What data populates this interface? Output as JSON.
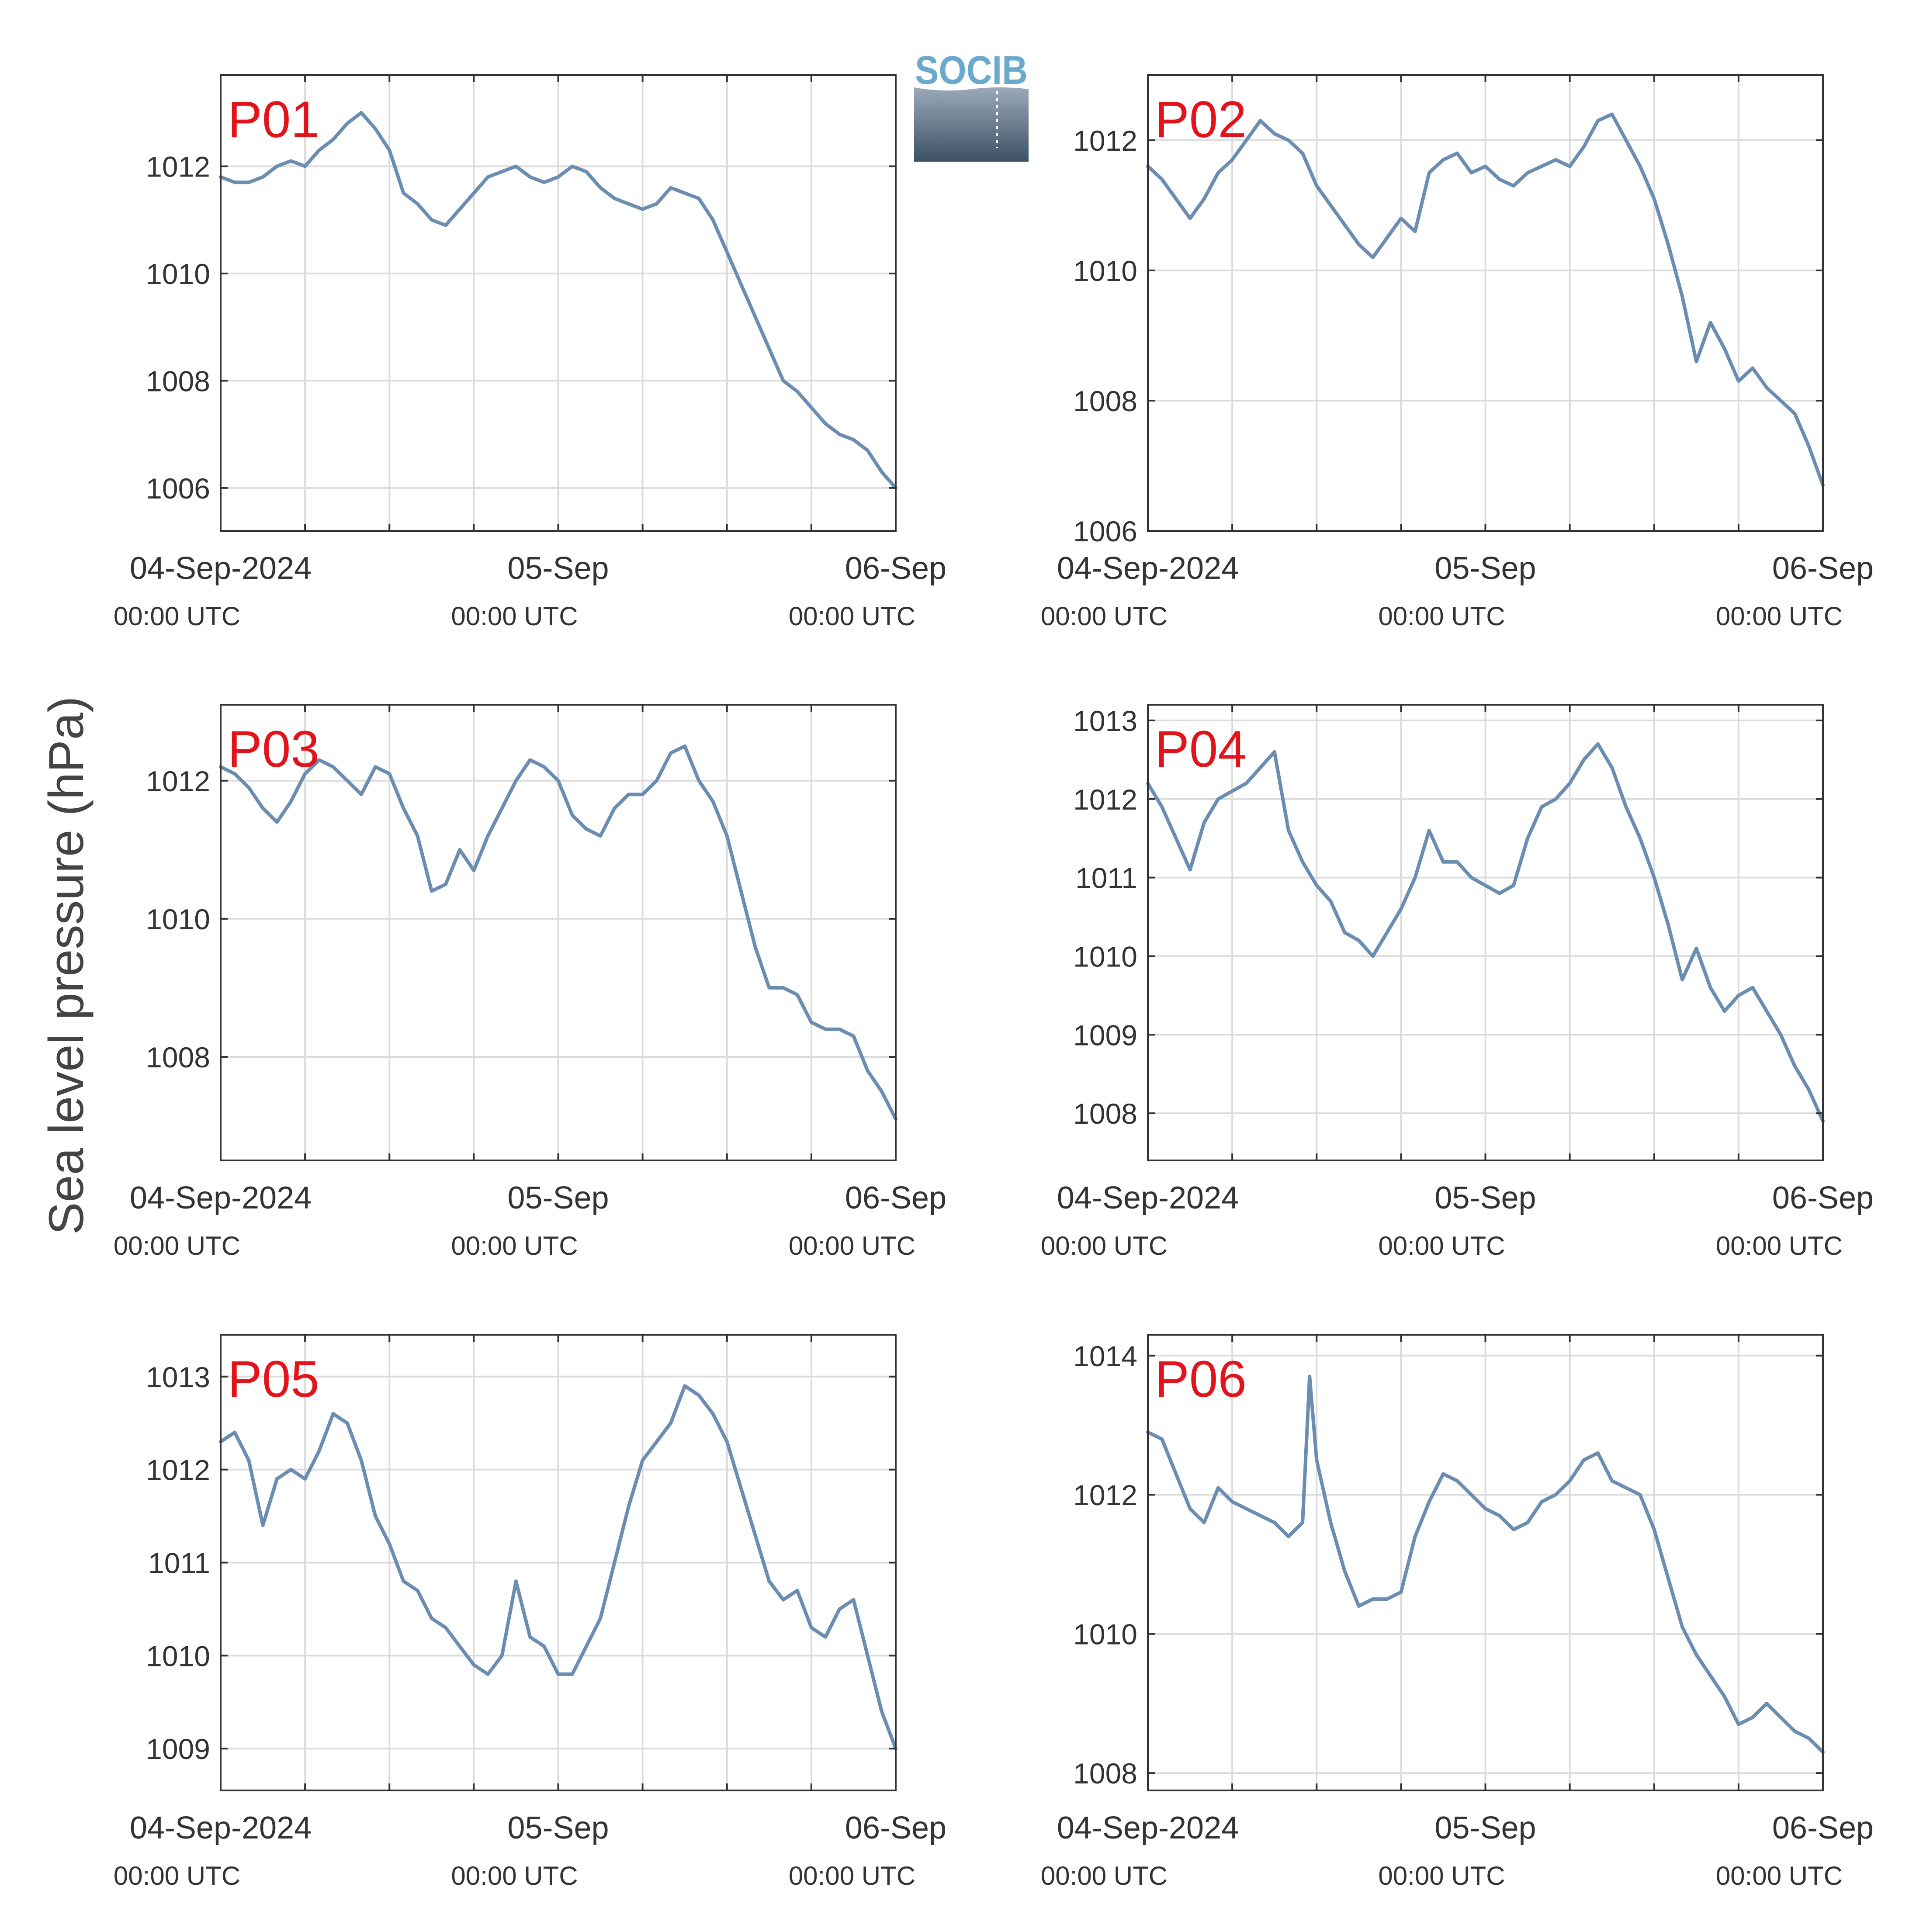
{
  "brand": {
    "logo_text": "SOCIB",
    "logo_color": "#6aa9cc",
    "logo_gradient_top": "#9aaab9",
    "logo_gradient_bottom": "#3d5064"
  },
  "colors": {
    "line": "#6b8db1",
    "label": "#e3131b",
    "axes": "#333333",
    "grid": "#dcdcdc"
  },
  "ylabel": "Sea level pressure (hPa)",
  "xticks": [
    {
      "date": "04-Sep-2024",
      "time": "00:00 UTC",
      "hour": 0
    },
    {
      "date": "05-Sep",
      "time": "00:00 UTC",
      "hour": 24
    },
    {
      "date": "06-Sep",
      "time": "00:00 UTC",
      "hour": 48
    }
  ],
  "chart_data": [
    {
      "type": "line",
      "label": "P01",
      "xlim": [
        0,
        48
      ],
      "ylim": [
        1005.2,
        1013.7
      ],
      "yticks": [
        1006,
        1008,
        1010,
        1012
      ],
      "series": [
        {
          "x": [
            0,
            1,
            2,
            3,
            4,
            5,
            6,
            7,
            8,
            9,
            10,
            11,
            12,
            13,
            14,
            15,
            16,
            17,
            18,
            19,
            20,
            21,
            22,
            23,
            24,
            25,
            26,
            27,
            28,
            29,
            30,
            31,
            32,
            33,
            34,
            35,
            36,
            37,
            38,
            39,
            40,
            41,
            42,
            43,
            44,
            45,
            46,
            47,
            48
          ],
          "values": [
            1011.8,
            1011.7,
            1011.7,
            1011.8,
            1012.0,
            1012.1,
            1012.0,
            1012.3,
            1012.5,
            1012.8,
            1013.0,
            1012.7,
            1012.3,
            1011.5,
            1011.3,
            1011.0,
            1010.9,
            1011.2,
            1011.5,
            1011.8,
            1011.9,
            1012.0,
            1011.8,
            1011.7,
            1011.8,
            1012.0,
            1011.9,
            1011.6,
            1011.4,
            1011.3,
            1011.2,
            1011.3,
            1011.6,
            1011.5,
            1011.4,
            1011.0,
            1010.4,
            1009.8,
            1009.2,
            1008.6,
            1008.0,
            1007.8,
            1007.5,
            1007.2,
            1007.0,
            1006.9,
            1006.7,
            1006.3,
            1006.0
          ]
        }
      ]
    },
    {
      "type": "line",
      "label": "P02",
      "xlim": [
        0,
        48
      ],
      "ylim": [
        1006,
        1013
      ],
      "yticks": [
        1006,
        1008,
        1010,
        1012
      ],
      "series": [
        {
          "x": [
            0,
            1,
            2,
            3,
            4,
            5,
            6,
            7,
            8,
            9,
            10,
            11,
            12,
            13,
            14,
            15,
            16,
            17,
            18,
            19,
            20,
            21,
            22,
            23,
            24,
            25,
            26,
            27,
            28,
            29,
            30,
            31,
            32,
            33,
            34,
            35,
            36,
            37,
            38,
            39,
            40,
            41,
            42,
            43,
            44,
            45,
            46,
            47,
            48
          ],
          "values": [
            1011.6,
            1011.4,
            1011.1,
            1010.8,
            1011.1,
            1011.5,
            1011.7,
            1012.0,
            1012.3,
            1012.1,
            1012.0,
            1011.8,
            1011.3,
            1011.0,
            1010.7,
            1010.4,
            1010.2,
            1010.5,
            1010.8,
            1010.6,
            1011.5,
            1011.7,
            1011.8,
            1011.5,
            1011.6,
            1011.4,
            1011.3,
            1011.5,
            1011.6,
            1011.7,
            1011.6,
            1011.9,
            1012.3,
            1012.4,
            1012.0,
            1011.6,
            1011.1,
            1010.4,
            1009.6,
            1008.6,
            1009.2,
            1008.8,
            1008.3,
            1008.5,
            1008.2,
            1008.0,
            1007.8,
            1007.3,
            1006.7
          ]
        }
      ]
    },
    {
      "type": "line",
      "label": "P03",
      "xlim": [
        0,
        48
      ],
      "ylim": [
        1006.5,
        1013.1
      ],
      "yticks": [
        1008,
        1010,
        1012
      ],
      "series": [
        {
          "x": [
            0,
            1,
            2,
            3,
            4,
            5,
            6,
            7,
            8,
            9,
            10,
            11,
            12,
            13,
            14,
            15,
            16,
            17,
            18,
            19,
            20,
            21,
            22,
            23,
            24,
            25,
            26,
            27,
            28,
            29,
            30,
            31,
            32,
            33,
            34,
            35,
            36,
            37,
            38,
            39,
            40,
            41,
            42,
            43,
            44,
            45,
            46,
            47,
            48
          ],
          "values": [
            1012.2,
            1012.1,
            1011.9,
            1011.6,
            1011.4,
            1011.7,
            1012.1,
            1012.3,
            1012.2,
            1012.0,
            1011.8,
            1012.2,
            1012.1,
            1011.6,
            1011.2,
            1010.4,
            1010.5,
            1011.0,
            1010.7,
            1011.2,
            1011.6,
            1012.0,
            1012.3,
            1012.2,
            1012.0,
            1011.5,
            1011.3,
            1011.2,
            1011.6,
            1011.8,
            1011.8,
            1012.0,
            1012.4,
            1012.5,
            1012.0,
            1011.7,
            1011.2,
            1010.4,
            1009.6,
            1009.0,
            1009.0,
            1008.9,
            1008.5,
            1008.4,
            1008.4,
            1008.3,
            1007.8,
            1007.5,
            1007.1
          ]
        }
      ]
    },
    {
      "type": "line",
      "label": "P04",
      "xlim": [
        0,
        48
      ],
      "ylim": [
        1007.4,
        1013.2
      ],
      "yticks": [
        1008,
        1009,
        1010,
        1011,
        1012,
        1013
      ],
      "series": [
        {
          "x": [
            0,
            1,
            2,
            3,
            4,
            5,
            6,
            7,
            8,
            9,
            10,
            11,
            12,
            13,
            14,
            15,
            16,
            17,
            18,
            19,
            20,
            21,
            22,
            23,
            24,
            25,
            26,
            27,
            28,
            29,
            30,
            31,
            32,
            33,
            34,
            35,
            36,
            37,
            38,
            39,
            40,
            41,
            42,
            43,
            44,
            45,
            46,
            47,
            48
          ],
          "values": [
            1012.2,
            1011.9,
            1011.5,
            1011.1,
            1011.7,
            1012.0,
            1012.1,
            1012.2,
            1012.4,
            1012.6,
            1011.6,
            1011.2,
            1010.9,
            1010.7,
            1010.3,
            1010.2,
            1010.0,
            1010.3,
            1010.6,
            1011.0,
            1011.6,
            1011.2,
            1011.2,
            1011.0,
            1010.9,
            1010.8,
            1010.9,
            1011.5,
            1011.9,
            1012.0,
            1012.2,
            1012.5,
            1012.7,
            1012.4,
            1011.9,
            1011.5,
            1011.0,
            1010.4,
            1009.7,
            1010.1,
            1009.6,
            1009.3,
            1009.5,
            1009.6,
            1009.3,
            1009.0,
            1008.6,
            1008.3,
            1007.9
          ]
        }
      ]
    },
    {
      "type": "line",
      "label": "P05",
      "xlim": [
        0,
        48
      ],
      "ylim": [
        1008.55,
        1013.45
      ],
      "yticks": [
        1009,
        1010,
        1011,
        1012,
        1013
      ],
      "series": [
        {
          "x": [
            0,
            1,
            2,
            3,
            4,
            5,
            6,
            7,
            8,
            9,
            10,
            11,
            12,
            13,
            14,
            15,
            16,
            17,
            18,
            19,
            20,
            21,
            22,
            23,
            24,
            25,
            26,
            27,
            28,
            29,
            30,
            31,
            32,
            33,
            34,
            35,
            36,
            37,
            38,
            39,
            40,
            41,
            42,
            43,
            44,
            45,
            46,
            47,
            48
          ],
          "values": [
            1012.3,
            1012.4,
            1012.1,
            1011.4,
            1011.9,
            1012.0,
            1011.9,
            1012.2,
            1012.6,
            1012.5,
            1012.1,
            1011.5,
            1011.2,
            1010.8,
            1010.7,
            1010.4,
            1010.3,
            1010.1,
            1009.9,
            1009.8,
            1010.0,
            1010.8,
            1010.2,
            1010.1,
            1009.8,
            1009.8,
            1010.1,
            1010.4,
            1011.0,
            1011.6,
            1012.1,
            1012.3,
            1012.5,
            1012.9,
            1012.8,
            1012.6,
            1012.3,
            1011.8,
            1011.3,
            1010.8,
            1010.6,
            1010.7,
            1010.3,
            1010.2,
            1010.5,
            1010.6,
            1010.0,
            1009.4,
            1009.0
          ]
        }
      ]
    },
    {
      "type": "line",
      "label": "P06",
      "xlim": [
        0,
        48
      ],
      "ylim": [
        1007.75,
        1014.3
      ],
      "yticks": [
        1008,
        1010,
        1012,
        1014
      ],
      "series": [
        {
          "x": [
            0,
            1,
            2,
            3,
            4,
            5,
            6,
            7,
            8,
            9,
            10,
            11,
            11.5,
            12,
            13,
            14,
            15,
            16,
            17,
            18,
            19,
            20,
            21,
            22,
            23,
            24,
            25,
            26,
            27,
            28,
            29,
            30,
            31,
            32,
            33,
            34,
            35,
            36,
            37,
            38,
            39,
            40,
            41,
            42,
            43,
            44,
            45,
            46,
            47,
            48
          ],
          "values": [
            1012.9,
            1012.8,
            1012.3,
            1011.8,
            1011.6,
            1012.1,
            1011.9,
            1011.8,
            1011.7,
            1011.6,
            1011.4,
            1011.6,
            1013.7,
            1012.5,
            1011.6,
            1010.9,
            1010.4,
            1010.5,
            1010.5,
            1010.6,
            1011.4,
            1011.9,
            1012.3,
            1012.2,
            1012.0,
            1011.8,
            1011.7,
            1011.5,
            1011.6,
            1011.9,
            1012.0,
            1012.2,
            1012.5,
            1012.6,
            1012.2,
            1012.1,
            1012.0,
            1011.5,
            1010.8,
            1010.1,
            1009.7,
            1009.4,
            1009.1,
            1008.7,
            1008.8,
            1009.0,
            1008.8,
            1008.6,
            1008.5,
            1008.3
          ]
        }
      ]
    }
  ]
}
